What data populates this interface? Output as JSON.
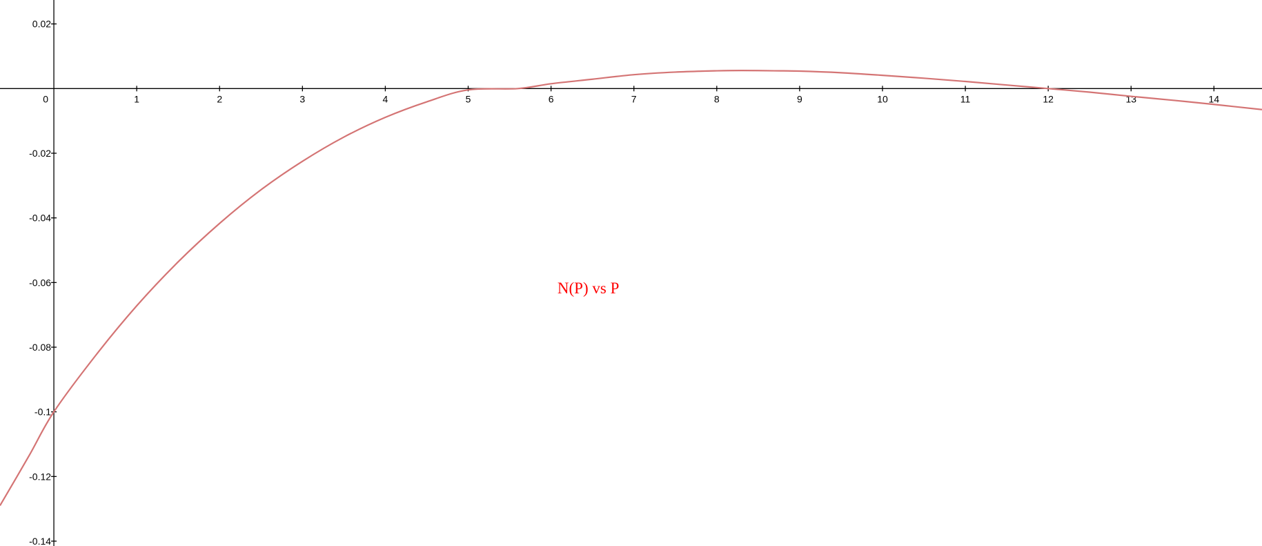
{
  "chart_data": {
    "type": "line",
    "xlim": [
      -0.65,
      14.58
    ],
    "ylim": [
      -0.1415,
      0.0274
    ],
    "grid": false,
    "x_ticks": [
      {
        "value": 0,
        "label": "0"
      },
      {
        "value": 1,
        "label": "1"
      },
      {
        "value": 2,
        "label": "2"
      },
      {
        "value": 3,
        "label": "3"
      },
      {
        "value": 4,
        "label": "4"
      },
      {
        "value": 5,
        "label": "5"
      },
      {
        "value": 6,
        "label": "6"
      },
      {
        "value": 7,
        "label": "7"
      },
      {
        "value": 8,
        "label": "8"
      },
      {
        "value": 9,
        "label": "9"
      },
      {
        "value": 10,
        "label": "10"
      },
      {
        "value": 11,
        "label": "11"
      },
      {
        "value": 12,
        "label": "12"
      },
      {
        "value": 13,
        "label": "13"
      },
      {
        "value": 14,
        "label": "14"
      }
    ],
    "y_ticks": [
      {
        "value": 0.02,
        "label": "0.02"
      },
      {
        "value": -0.02,
        "label": "-0.02"
      },
      {
        "value": -0.04,
        "label": "-0.04"
      },
      {
        "value": -0.06,
        "label": "-0.06"
      },
      {
        "value": -0.08,
        "label": "-0.08"
      },
      {
        "value": -0.1,
        "label": "-0.1"
      },
      {
        "value": -0.12,
        "label": "-0.12"
      },
      {
        "value": -0.14,
        "label": "-0.14"
      }
    ],
    "series": [
      {
        "color": "#d47474",
        "points": [
          [
            -0.65,
            -0.129
          ],
          [
            -0.3,
            -0.1136
          ],
          [
            0,
            -0.1
          ],
          [
            0.5,
            -0.0827
          ],
          [
            1,
            -0.0672
          ],
          [
            1.5,
            -0.0536
          ],
          [
            2,
            -0.0417
          ],
          [
            2.5,
            -0.0313
          ],
          [
            3,
            -0.0225
          ],
          [
            3.5,
            -0.015
          ],
          [
            4,
            -0.0089
          ],
          [
            4.5,
            -0.0041
          ],
          [
            5,
            -0.0004
          ],
          [
            5.6,
            0
          ],
          [
            6,
            0.0015
          ],
          [
            6.5,
            0.0029
          ],
          [
            7,
            0.0043
          ],
          [
            7.5,
            0.0051
          ],
          [
            8,
            0.0055
          ],
          [
            8.3,
            0.0056
          ],
          [
            8.7,
            0.0055
          ],
          [
            9,
            0.0054
          ],
          [
            9.5,
            0.0049
          ],
          [
            10,
            0.0041
          ],
          [
            10.5,
            0.0032
          ],
          [
            11,
            0.0022
          ],
          [
            11.5,
            0.0011
          ],
          [
            12,
            0
          ],
          [
            12.5,
            -0.0011
          ],
          [
            13,
            -0.0024
          ],
          [
            13.5,
            -0.0036
          ],
          [
            14,
            -0.0049
          ],
          [
            14.58,
            -0.0065
          ]
        ]
      }
    ],
    "annotations": [
      {
        "text": "N(P) vs P",
        "x": 6.45,
        "y": -0.0634,
        "color": "#ff0000"
      }
    ]
  }
}
